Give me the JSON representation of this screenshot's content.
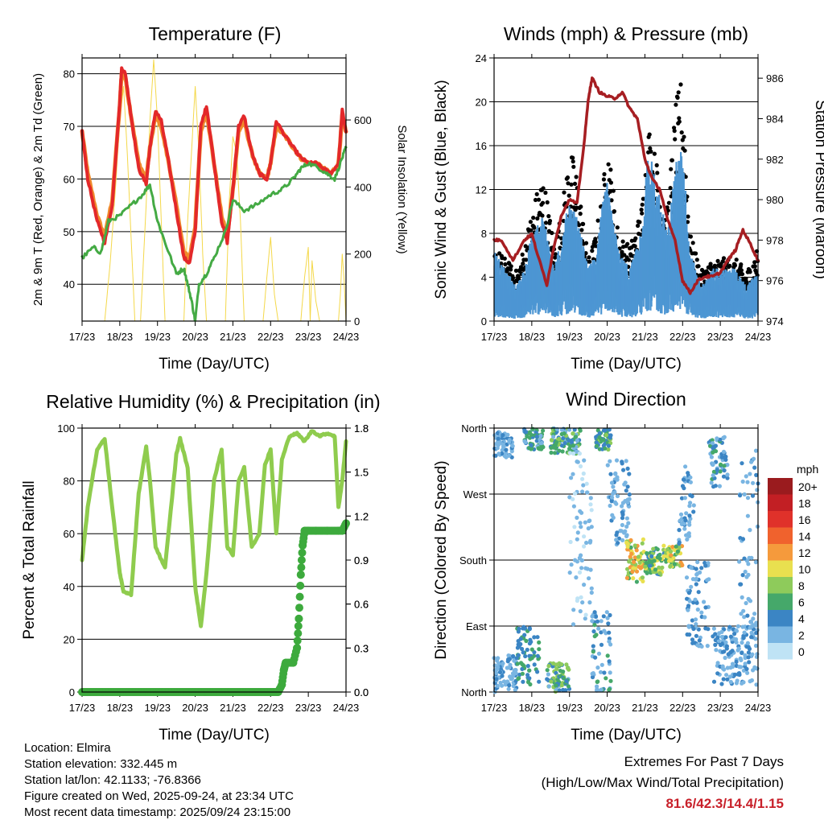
{
  "colors": {
    "temp2m": "#e3282a",
    "temp9m": "#f08a2c",
    "dewpoint": "#44aa44",
    "solar": "#f4d84a",
    "wind": "#4d96d3",
    "gust": "#000000",
    "pressure": "#a61e22",
    "rh": "#8fcc4e",
    "precip": "#3daa3d"
  },
  "chart_data": [
    {
      "id": "temperature",
      "type": "line",
      "title": "Temperature (F)",
      "xlabel": "Time (Day/UTC)",
      "ylabel": "2m & 9m T (Red, Orange) & 2m Td (Green)",
      "y2label": "Solar Insolation (Yellow)",
      "x_ticks": [
        "17/23",
        "18/23",
        "19/23",
        "20/23",
        "21/23",
        "22/23",
        "23/23",
        "24/23"
      ],
      "xlim": [
        0,
        7
      ],
      "ylim": [
        33,
        83
      ],
      "y_ticks": [
        40,
        50,
        60,
        70,
        80
      ],
      "y2lim": [
        0,
        785
      ],
      "y2_ticks": [
        0,
        200,
        400,
        600
      ],
      "series": [
        {
          "name": "2m T",
          "color": "#e3282a",
          "x": [
            0,
            0.15,
            0.4,
            0.6,
            0.8,
            1.0,
            1.05,
            1.15,
            1.3,
            1.5,
            1.7,
            1.8,
            1.95,
            2.1,
            2.3,
            2.5,
            2.7,
            2.85,
            3.0,
            3.15,
            3.3,
            3.5,
            3.7,
            3.85,
            4.0,
            4.15,
            4.3,
            4.5,
            4.7,
            4.9,
            5.0,
            5.15,
            5.4,
            5.6,
            5.8,
            6.0,
            6.2,
            6.4,
            6.6,
            6.8,
            6.9,
            7.0
          ],
          "y": [
            69,
            60,
            52,
            48,
            55,
            75,
            81,
            80,
            72,
            62,
            59,
            66,
            73,
            71,
            63,
            54,
            45,
            44,
            50,
            70,
            74,
            63,
            52,
            48,
            58,
            70,
            72,
            65,
            61,
            60,
            63,
            71,
            68,
            66,
            64,
            63,
            63,
            62,
            61,
            63,
            73,
            69
          ]
        },
        {
          "name": "9m T",
          "color": "#f08a2c",
          "x": [
            0,
            0.15,
            0.4,
            0.6,
            0.8,
            1.0,
            1.05,
            1.15,
            1.3,
            1.5,
            1.7,
            1.8,
            1.95,
            2.1,
            2.3,
            2.5,
            2.7,
            2.85,
            3.0,
            3.15,
            3.3,
            3.5,
            3.7,
            3.85,
            4.0,
            4.15,
            4.3,
            4.5,
            4.7,
            4.9,
            5.0,
            5.15,
            5.4,
            5.6,
            5.8,
            6.0,
            6.2,
            6.4,
            6.6,
            6.8,
            6.9,
            7.0
          ],
          "y": [
            69,
            61,
            53,
            49,
            56,
            74,
            80,
            79,
            72,
            63,
            60,
            66,
            72,
            70,
            63,
            55,
            46,
            45,
            51,
            69,
            73,
            63,
            53,
            49,
            58,
            69,
            71,
            65,
            61,
            60,
            63,
            70,
            68,
            66,
            64,
            63,
            63,
            62,
            61,
            63,
            72,
            69
          ]
        },
        {
          "name": "2m Td",
          "color": "#44aa44",
          "x": [
            0,
            0.3,
            0.5,
            0.7,
            1.0,
            1.3,
            1.6,
            1.8,
            2.0,
            2.2,
            2.5,
            2.7,
            2.8,
            2.9,
            3.0,
            3.1,
            3.3,
            3.5,
            3.8,
            4.0,
            4.3,
            4.6,
            5.0,
            5.3,
            5.6,
            5.8,
            6.0,
            6.3,
            6.5,
            6.7,
            6.9,
            7.0
          ],
          "y": [
            45,
            47,
            46,
            52,
            53,
            55,
            57,
            59,
            52,
            48,
            42,
            43,
            40,
            37,
            33,
            40,
            42,
            45,
            50,
            56,
            54,
            55,
            57,
            58,
            60,
            62,
            63,
            62,
            61,
            60,
            64,
            66
          ]
        },
        {
          "name": "Solar",
          "color": "#f4d84a",
          "axis": "y2",
          "x": [
            0.6,
            0.75,
            0.9,
            1.0,
            1.1,
            1.2,
            1.4,
            1.55,
            1.7,
            1.8,
            1.9,
            2.0,
            2.1,
            2.2,
            2.3,
            2.5,
            2.7,
            2.8,
            2.9,
            3.0,
            3.1,
            3.2,
            3.3,
            3.4,
            3.6,
            3.8,
            3.9,
            4.0,
            4.1,
            4.2,
            4.3,
            4.4,
            4.6,
            4.8,
            4.9,
            5.0,
            5.1,
            5.2,
            5.4,
            5.6,
            5.8,
            5.9,
            6.0,
            6.05,
            6.1,
            6.2,
            6.3,
            6.5,
            6.7,
            6.8,
            6.85,
            6.9,
            6.95,
            7.0
          ],
          "y": [
            0,
            180,
            420,
            600,
            700,
            500,
            0,
            0,
            350,
            600,
            780,
            600,
            300,
            0,
            0,
            0,
            0,
            300,
            500,
            700,
            500,
            200,
            0,
            0,
            0,
            0,
            350,
            550,
            500,
            300,
            0,
            0,
            0,
            0,
            130,
            250,
            80,
            0,
            0,
            0,
            0,
            130,
            220,
            0,
            180,
            60,
            0,
            0,
            0,
            0,
            80,
            200,
            120,
            0
          ]
        }
      ]
    },
    {
      "id": "winds",
      "type": "line",
      "title": "Winds (mph) & Pressure (mb)",
      "xlabel": "Time (Day/UTC)",
      "ylabel": "Sonic Wind & Gust (Blue, Black)",
      "y2label": "Station Pressure (Maroon)",
      "x_ticks": [
        "17/23",
        "18/23",
        "19/23",
        "20/23",
        "21/23",
        "22/23",
        "23/23",
        "24/23"
      ],
      "xlim": [
        0,
        7
      ],
      "ylim": [
        0,
        24
      ],
      "y_ticks": [
        0,
        4,
        8,
        12,
        16,
        20,
        24
      ],
      "y2lim": [
        974,
        987
      ],
      "y2_ticks": [
        974,
        976,
        978,
        980,
        982,
        984,
        986
      ],
      "series": [
        {
          "name": "Wind",
          "color": "#4d96d3",
          "x": [
            0,
            0.3,
            0.6,
            0.8,
            1.0,
            1.3,
            1.6,
            1.8,
            2.0,
            2.2,
            2.5,
            2.7,
            2.9,
            3.0,
            3.3,
            3.6,
            3.9,
            4.1,
            4.3,
            4.6,
            4.8,
            5.0,
            5.2,
            5.5,
            5.8,
            6.1,
            6.4,
            6.7,
            7.0
          ],
          "y": [
            4,
            3,
            2,
            3,
            5,
            6,
            3,
            5,
            7,
            6,
            3,
            4,
            7,
            8,
            4,
            3,
            5,
            10,
            8,
            5,
            9,
            10,
            4,
            2,
            3,
            3,
            3,
            2,
            3
          ]
        },
        {
          "name": "Gust",
          "color": "#000000",
          "x": [
            0,
            0.3,
            0.6,
            0.8,
            1.0,
            1.3,
            1.6,
            1.8,
            2.0,
            2.2,
            2.5,
            2.7,
            2.9,
            3.0,
            3.3,
            3.6,
            3.9,
            4.1,
            4.3,
            4.6,
            4.8,
            5.0,
            5.2,
            5.5,
            5.8,
            6.1,
            6.4,
            6.7,
            7.0
          ],
          "y": [
            6,
            5,
            4,
            6,
            9,
            12,
            6,
            9,
            14,
            12,
            5,
            7,
            11,
            15,
            7,
            6,
            9,
            16,
            13,
            9,
            17,
            20,
            7,
            4,
            5,
            5,
            5,
            4,
            6
          ]
        },
        {
          "name": "Pressure",
          "color": "#a61e22",
          "axis": "y2",
          "x": [
            0,
            0.2,
            0.5,
            0.8,
            1.0,
            1.2,
            1.4,
            1.6,
            1.8,
            2.0,
            2.2,
            2.4,
            2.5,
            2.6,
            2.8,
            3.0,
            3.2,
            3.4,
            3.6,
            3.8,
            4.0,
            4.2,
            4.4,
            4.6,
            4.8,
            5.0,
            5.2,
            5.4,
            5.6,
            5.8,
            6.0,
            6.2,
            6.4,
            6.6,
            6.8,
            7.0
          ],
          "y": [
            978,
            978,
            977,
            978,
            978.3,
            977,
            975.8,
            977.8,
            979.3,
            980,
            979.8,
            983,
            985,
            986,
            985.3,
            985.1,
            985,
            985.3,
            984.5,
            984,
            982,
            981,
            980.5,
            979,
            978,
            976,
            975.4,
            976,
            976.2,
            976.2,
            976.4,
            977,
            977.5,
            978.5,
            977.8,
            977
          ]
        }
      ]
    },
    {
      "id": "humidity",
      "type": "line",
      "title": "Relative Humidity (%) & Precipitation (in)",
      "xlabel": "Time (Day/UTC)",
      "ylabel": "Percent & Total Rainfall",
      "x_ticks": [
        "17/23",
        "18/23",
        "19/23",
        "20/23",
        "21/23",
        "22/23",
        "23/23",
        "24/23"
      ],
      "xlim": [
        0,
        7
      ],
      "ylim": [
        0,
        100
      ],
      "y_ticks": [
        0,
        20,
        40,
        60,
        80,
        100
      ],
      "y2lim": [
        0,
        1.8
      ],
      "y2_ticks": [
        "0.0",
        "0.3",
        "0.6",
        "0.9",
        "1.2",
        "1.5",
        "1.8"
      ],
      "series": [
        {
          "name": "RH",
          "color": "#8fcc4e",
          "x": [
            0,
            0.15,
            0.4,
            0.6,
            0.8,
            1.0,
            1.1,
            1.3,
            1.5,
            1.7,
            1.8,
            1.95,
            2.2,
            2.5,
            2.6,
            2.8,
            3.0,
            3.15,
            3.3,
            3.5,
            3.7,
            3.85,
            4.0,
            4.15,
            4.3,
            4.5,
            4.7,
            4.85,
            5.0,
            5.15,
            5.3,
            5.5,
            5.7,
            5.9,
            6.1,
            6.3,
            6.5,
            6.7,
            6.8,
            6.9,
            7.0
          ],
          "y": [
            50,
            70,
            92,
            96,
            70,
            45,
            38,
            37,
            75,
            93,
            80,
            55,
            47,
            90,
            96,
            85,
            40,
            25,
            45,
            80,
            92,
            55,
            52,
            80,
            85,
            55,
            60,
            86,
            92,
            60,
            88,
            97,
            98,
            95,
            99,
            97,
            98,
            97,
            70,
            80,
            95
          ]
        },
        {
          "name": "Precip",
          "color": "#3daa3d",
          "axis": "y2",
          "x": [
            0,
            5.2,
            5.3,
            5.35,
            5.4,
            5.6,
            5.7,
            5.75,
            5.8,
            5.85,
            5.9,
            6.0,
            6.2,
            6.5,
            6.8,
            6.9,
            7.0
          ],
          "y": [
            0,
            0,
            0.05,
            0.15,
            0.2,
            0.2,
            0.3,
            0.5,
            0.8,
            1.0,
            1.1,
            1.1,
            1.1,
            1.1,
            1.1,
            1.1,
            1.15
          ]
        }
      ]
    },
    {
      "id": "direction",
      "type": "scatter",
      "title": "Wind Direction",
      "xlabel": "Time (Day/UTC)",
      "ylabel": "Direction (Colored By Speed)",
      "x_ticks": [
        "17/23",
        "18/23",
        "19/23",
        "20/23",
        "21/23",
        "22/23",
        "23/23",
        "24/23"
      ],
      "xlim": [
        0,
        7
      ],
      "ylim": [
        0,
        360
      ],
      "y_tick_values": [
        0,
        90,
        180,
        270,
        360
      ],
      "y_tick_labels": [
        "North",
        "East",
        "South",
        "West",
        "North"
      ],
      "legend": {
        "title": "mph",
        "labels": [
          "20+",
          "18",
          "16",
          "14",
          "12",
          "10",
          "8",
          "6",
          "4",
          "2",
          "0"
        ],
        "colors": [
          "#9a1b1e",
          "#c21f24",
          "#e0312a",
          "#f0622d",
          "#f59a3c",
          "#e9e04f",
          "#8ecb5b",
          "#45a86a",
          "#3b85c4",
          "#79b5e2",
          "#bfe3f5"
        ]
      },
      "clusters": [
        {
          "x": [
            0,
            0.5
          ],
          "y": [
            320,
            355
          ],
          "speed": [
            1,
            4
          ]
        },
        {
          "x": [
            0.8,
            1.3
          ],
          "y": [
            330,
            360
          ],
          "speed": [
            2,
            7
          ]
        },
        {
          "x": [
            1.5,
            2.3
          ],
          "y": [
            325,
            360
          ],
          "speed": [
            2,
            8
          ]
        },
        {
          "x": [
            2.7,
            3.1
          ],
          "y": [
            330,
            360
          ],
          "speed": [
            3,
            8
          ]
        },
        {
          "x": [
            0,
            0.6
          ],
          "y": [
            0,
            50
          ],
          "speed": [
            1,
            4
          ]
        },
        {
          "x": [
            0.6,
            1.2
          ],
          "y": [
            10,
            90
          ],
          "speed": [
            3,
            7
          ]
        },
        {
          "x": [
            1.4,
            2.0
          ],
          "y": [
            0,
            40
          ],
          "speed": [
            2,
            9
          ]
        },
        {
          "x": [
            2.6,
            3.1
          ],
          "y": [
            0,
            110
          ],
          "speed": [
            1,
            6
          ]
        },
        {
          "x": [
            3.0,
            3.6
          ],
          "y": [
            200,
            320
          ],
          "speed": [
            1,
            4
          ]
        },
        {
          "x": [
            3.5,
            4.0
          ],
          "y": [
            150,
            210
          ],
          "speed": [
            6,
            13
          ]
        },
        {
          "x": [
            4.0,
            4.6
          ],
          "y": [
            160,
            200
          ],
          "speed": [
            4,
            11
          ]
        },
        {
          "x": [
            4.6,
            5.0
          ],
          "y": [
            170,
            200
          ],
          "speed": [
            6,
            12
          ]
        },
        {
          "x": [
            4.9,
            5.3
          ],
          "y": [
            200,
            310
          ],
          "speed": [
            1,
            5
          ]
        },
        {
          "x": [
            5.1,
            5.7
          ],
          "y": [
            60,
            180
          ],
          "speed": [
            1,
            5
          ]
        },
        {
          "x": [
            5.7,
            6.2
          ],
          "y": [
            280,
            350
          ],
          "speed": [
            1,
            6
          ]
        },
        {
          "x": [
            5.8,
            7.0
          ],
          "y": [
            10,
            90
          ],
          "speed": [
            1,
            4
          ]
        },
        {
          "x": [
            6.5,
            7.0
          ],
          "y": [
            80,
            330
          ],
          "speed": [
            1,
            4
          ]
        },
        {
          "x": [
            2.0,
            2.6
          ],
          "y": [
            90,
            330
          ],
          "speed": [
            0,
            3
          ]
        }
      ]
    }
  ],
  "info": {
    "location": "Location: Elmira",
    "elevation": "Station elevation: 332.445 m",
    "latlon": "Station lat/lon: 42.1133; -76.8366",
    "created": "Figure created on Wed, 2025-09-24, at 23:34 UTC",
    "timestamp": "Most recent data timestamp: 2025/09/24 23:15:00"
  },
  "extremes": {
    "title": "Extremes For Past 7 Days",
    "subtitle": "(High/Low/Max Wind/Total Precipitation)",
    "values": "81.6/42.3/14.4/1.15"
  }
}
